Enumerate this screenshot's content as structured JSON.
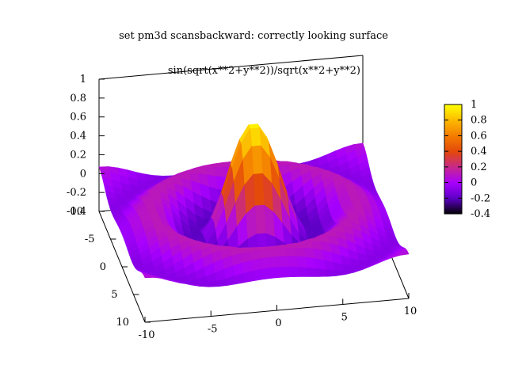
{
  "chart_data": {
    "type": "surface",
    "render": "pm3d",
    "title": "set pm3d scansbackward: correctly looking surface",
    "function_label": "sin(sqrt(x**2+y**2))/sqrt(x**2+y**2)",
    "xlabel": "",
    "ylabel": "",
    "zlabel": "",
    "xlim": [
      -10,
      10
    ],
    "ylim": [
      -10,
      10
    ],
    "zlim": [
      -0.4,
      1
    ],
    "x_ticks": [
      "-10",
      "-5",
      "0",
      "5",
      "10"
    ],
    "y_ticks": [
      "-10",
      "-5",
      "0",
      "5",
      "10"
    ],
    "z_ticks": [
      "1",
      "0.8",
      "0.6",
      "0.4",
      "0.2",
      "0",
      "-0.2",
      "-0.4"
    ],
    "colorbar": {
      "range": [
        -0.4,
        1
      ],
      "ticks": [
        "1",
        "0.8",
        "0.6",
        "0.4",
        "0.2",
        "0",
        "-0.2",
        "-0.4"
      ],
      "palette": [
        "#000000",
        "#5d00c4",
        "#a800ff",
        "#c7288c",
        "#e3480c",
        "#f47c00",
        "#fcb800",
        "#ffff00"
      ]
    },
    "grid": false,
    "samples": 30
  }
}
